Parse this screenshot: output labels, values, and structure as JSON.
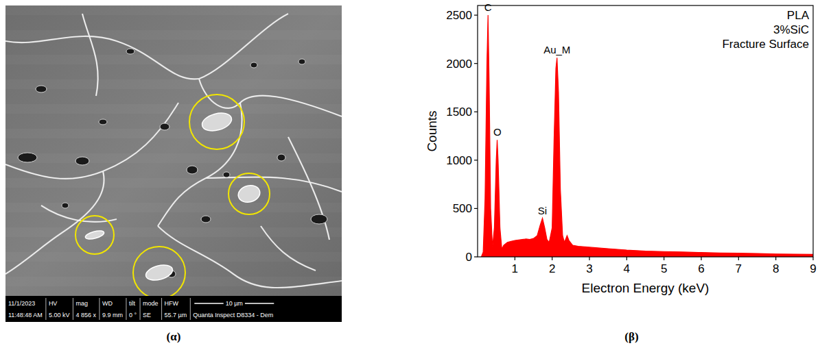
{
  "chart_data": {
    "type": "area",
    "title": [
      "PLA",
      "3%SiC",
      "Fracture Surface"
    ],
    "x_label": "Electron Energy (keV)",
    "y_label": "Counts",
    "color": "#ff0000",
    "x": [
      0.1,
      0.15,
      0.2,
      0.25,
      0.28,
      0.31,
      0.35,
      0.4,
      0.45,
      0.5,
      0.525,
      0.55,
      0.6,
      0.65,
      0.7,
      0.8,
      0.9,
      1.0,
      1.1,
      1.2,
      1.3,
      1.4,
      1.5,
      1.6,
      1.68,
      1.74,
      1.8,
      1.86,
      1.92,
      2.0,
      2.05,
      2.1,
      2.13,
      2.17,
      2.22,
      2.28,
      2.33,
      2.4,
      2.45,
      2.55,
      2.7,
      3.0,
      3.5,
      4.0,
      4.5,
      5.0,
      5.5,
      6.0,
      6.5,
      7.0,
      7.5,
      8.0,
      8.5,
      9.0
    ],
    "values": [
      0,
      50,
      600,
      2000,
      2500,
      1800,
      500,
      100,
      300,
      1000,
      1210,
      1000,
      300,
      80,
      120,
      150,
      160,
      170,
      175,
      180,
      185,
      180,
      190,
      220,
      330,
      400,
      300,
      180,
      150,
      300,
      1200,
      1950,
      2060,
      1700,
      700,
      220,
      150,
      220,
      170,
      120,
      110,
      100,
      85,
      70,
      60,
      55,
      50,
      45,
      40,
      38,
      35,
      30,
      28,
      25
    ],
    "annotations": [
      {
        "text": "C",
        "x": 0.28,
        "y": 2500
      },
      {
        "text": "O",
        "x": 0.53,
        "y": 1210
      },
      {
        "text": "Si",
        "x": 1.74,
        "y": 400
      },
      {
        "text": "Au_M",
        "x": 2.13,
        "y": 2060
      }
    ],
    "xlim": [
      0,
      9
    ],
    "xticks": [
      1,
      2,
      3,
      4,
      5,
      6,
      7,
      8,
      9
    ],
    "ylim": [
      0,
      2600
    ],
    "yticks": [
      0,
      500,
      1000,
      1500,
      2000,
      2500
    ],
    "grid": false
  },
  "micrograph": {
    "info_headers": [
      "11/1/2023",
      "HV",
      "mag",
      "WD",
      "tilt",
      "mode",
      "HFW"
    ],
    "info_values": [
      "11:48:48 AM",
      "5.00 kV",
      "4 856 x",
      "9.9 mm",
      "0 °",
      "SE",
      "55.7 µm",
      "Quanta Inspect D8334 - Dem"
    ],
    "scale_bar": "10 µm"
  },
  "panel_labels": [
    "(α)",
    "(β)"
  ]
}
